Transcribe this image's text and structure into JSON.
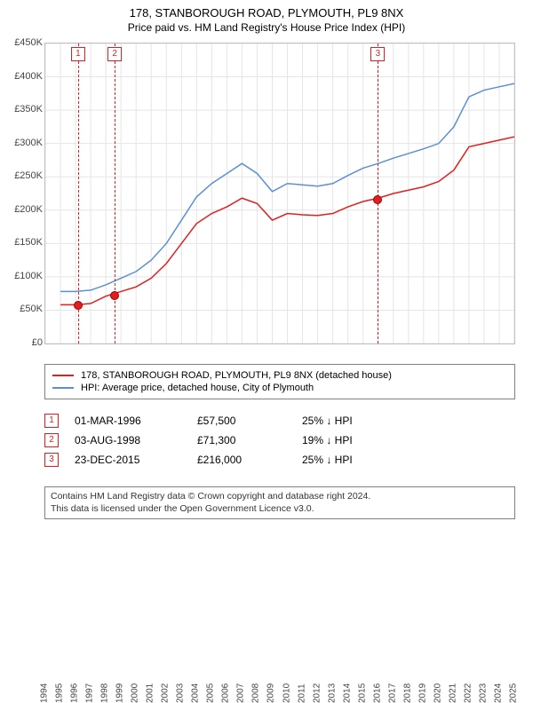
{
  "title_line1": "178, STANBOROUGH ROAD, PLYMOUTH, PL9 8NX",
  "title_line2": "Price paid vs. HM Land Registry's House Price Index (HPI)",
  "colors": {
    "background": "#ffffff",
    "grid": "#e5e5e5",
    "border": "#bfbfbf",
    "series_red": "#e02020",
    "series_blue": "#5b8fd6",
    "marker_border": "#e02020",
    "marker_line": "#e02020",
    "legend_border": "#808080",
    "footer_border": "#808080"
  },
  "chart": {
    "type": "line",
    "xlim": [
      1994,
      2025
    ],
    "ylim": [
      0,
      450000
    ],
    "ytick_step": 50000,
    "yticks": [
      "£0",
      "£50K",
      "£100K",
      "£150K",
      "£200K",
      "£250K",
      "£300K",
      "£350K",
      "£400K",
      "£450K"
    ],
    "xticks": [
      1994,
      1995,
      1996,
      1997,
      1998,
      1999,
      2000,
      2001,
      2002,
      2003,
      2004,
      2005,
      2006,
      2007,
      2008,
      2009,
      2010,
      2011,
      2012,
      2013,
      2014,
      2015,
      2016,
      2017,
      2018,
      2019,
      2020,
      2021,
      2022,
      2023,
      2024,
      2025
    ],
    "yaxis_fontsize": 11,
    "xaxis_fontsize": 10,
    "line_width": 1.5,
    "grid_on": true,
    "series": {
      "red": {
        "label": "178, STANBOROUGH ROAD, PLYMOUTH, PL9 8NX (detached house)",
        "color": "#e02020",
        "x": [
          1995,
          1996,
          1997,
          1998,
          1999,
          2000,
          2001,
          2002,
          2003,
          2004,
          2005,
          2006,
          2007,
          2008,
          2009,
          2010,
          2011,
          2012,
          2013,
          2014,
          2015,
          2016,
          2017,
          2018,
          2019,
          2020,
          2021,
          2022,
          2023,
          2024,
          2025
        ],
        "y": [
          58000,
          58000,
          60000,
          71000,
          78000,
          85000,
          98000,
          120000,
          150000,
          180000,
          195000,
          205000,
          218000,
          210000,
          185000,
          195000,
          193000,
          192000,
          195000,
          205000,
          213000,
          218000,
          225000,
          230000,
          235000,
          243000,
          260000,
          295000,
          300000,
          305000,
          310000
        ]
      },
      "blue": {
        "label": "HPI: Average price, detached house, City of Plymouth",
        "color": "#5b8fd6",
        "x": [
          1995,
          1996,
          1997,
          1998,
          1999,
          2000,
          2001,
          2002,
          2003,
          2004,
          2005,
          2006,
          2007,
          2008,
          2009,
          2010,
          2011,
          2012,
          2013,
          2014,
          2015,
          2016,
          2017,
          2018,
          2019,
          2020,
          2021,
          2022,
          2023,
          2024,
          2025
        ],
        "y": [
          78000,
          78000,
          80000,
          88000,
          98000,
          108000,
          125000,
          150000,
          185000,
          220000,
          240000,
          255000,
          270000,
          255000,
          228000,
          240000,
          238000,
          236000,
          240000,
          252000,
          263000,
          270000,
          278000,
          285000,
          292000,
          300000,
          325000,
          370000,
          380000,
          385000,
          390000
        ]
      }
    }
  },
  "markers": [
    {
      "n": "1",
      "year": 1996.17,
      "color": "#e02020"
    },
    {
      "n": "2",
      "year": 1998.59,
      "color": "#e02020"
    },
    {
      "n": "3",
      "year": 2015.98,
      "color": "#e02020"
    }
  ],
  "sale_dots": [
    {
      "year": 1996.17,
      "value": 57500
    },
    {
      "year": 1998.59,
      "value": 71300
    },
    {
      "year": 2015.98,
      "value": 216000
    }
  ],
  "legend": {
    "items": [
      {
        "color": "#e02020",
        "label": "178, STANBOROUGH ROAD, PLYMOUTH, PL9 8NX (detached house)"
      },
      {
        "color": "#5b8fd6",
        "label": "HPI: Average price, detached house, City of Plymouth"
      }
    ]
  },
  "table": {
    "rows": [
      {
        "n": "1",
        "date": "01-MAR-1996",
        "price": "£57,500",
        "delta": "25% ↓ HPI"
      },
      {
        "n": "2",
        "date": "03-AUG-1998",
        "price": "£71,300",
        "delta": "19% ↓ HPI"
      },
      {
        "n": "3",
        "date": "23-DEC-2015",
        "price": "£216,000",
        "delta": "25% ↓ HPI"
      }
    ]
  },
  "footer_line1": "Contains HM Land Registry data © Crown copyright and database right 2024.",
  "footer_line2": "This data is licensed under the Open Government Licence v3.0."
}
